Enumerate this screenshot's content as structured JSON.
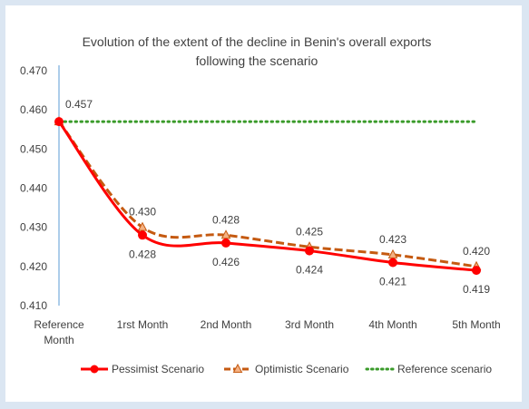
{
  "chart_data": {
    "type": "line",
    "title_lines": [
      "Evolution of the extent of the decline in Benin's overall exports",
      "following the scenario"
    ],
    "categories": [
      [
        "Reference",
        "Month"
      ],
      [
        "1rst Month"
      ],
      [
        "2nd Month"
      ],
      [
        "3rd Month"
      ],
      [
        "4th Month"
      ],
      [
        "5th Month"
      ]
    ],
    "ylim": [
      0.41,
      0.47
    ],
    "yticks": [
      "0.410",
      "0.420",
      "0.430",
      "0.440",
      "0.450",
      "0.460",
      "0.470"
    ],
    "grid": false,
    "legend_position": "bottom",
    "series": [
      {
        "name": "Pessimist Scenario",
        "color": "#ff0000",
        "style": "solid",
        "marker": "circle",
        "values": [
          0.457,
          0.428,
          0.426,
          0.424,
          0.421,
          0.419
        ],
        "labels": [
          "",
          "0.428",
          "0.426",
          "0.424",
          "0.421",
          "0.419"
        ]
      },
      {
        "name": "Optimistic Scenario",
        "color": "#c55a11",
        "style": "dashed",
        "marker": "triangle",
        "values": [
          0.457,
          0.43,
          0.428,
          0.425,
          0.423,
          0.42
        ],
        "labels": [
          "0.457",
          "0.430",
          "0.428",
          "0.425",
          "0.423",
          "0.420"
        ]
      },
      {
        "name": "Reference scenario",
        "color": "#3a9b2a",
        "style": "dotted",
        "marker": "none",
        "values": [
          0.457,
          0.457,
          0.457,
          0.457,
          0.457,
          0.457
        ],
        "labels": [
          "",
          "",
          "",
          "",
          "",
          ""
        ]
      }
    ]
  }
}
